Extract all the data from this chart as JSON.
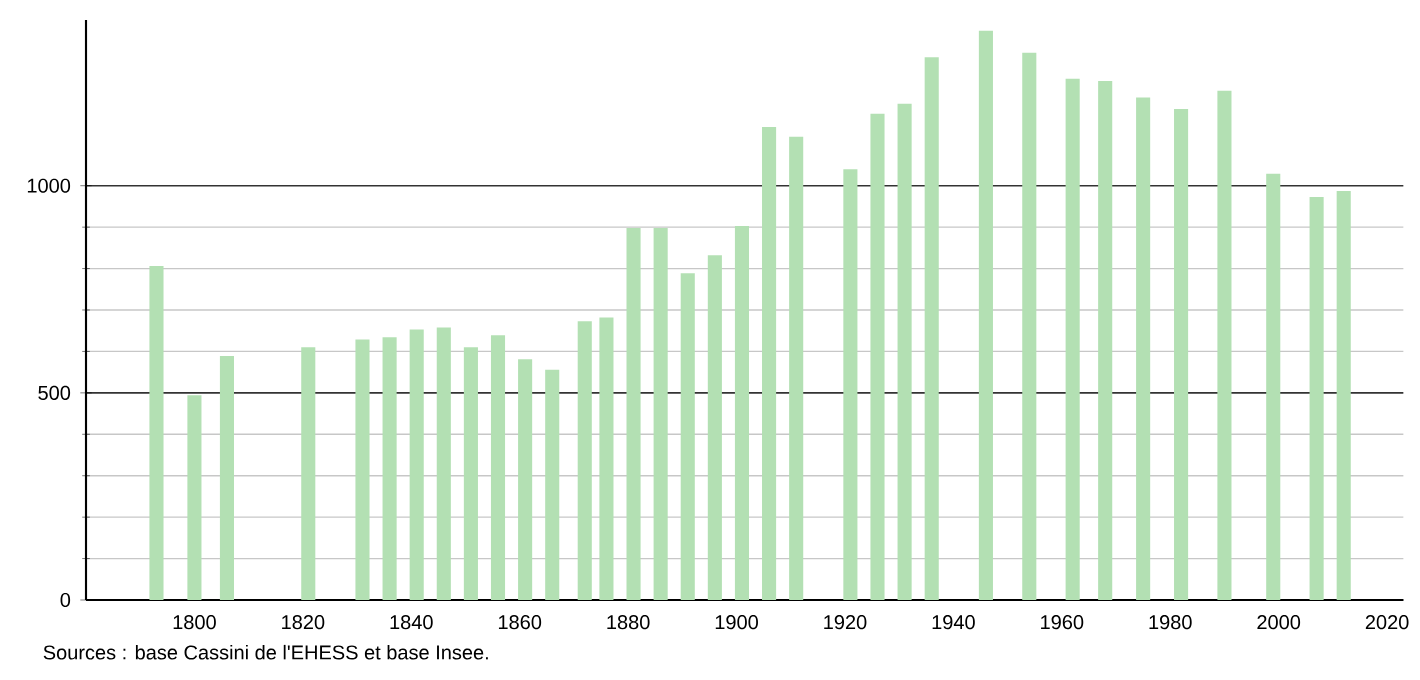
{
  "chart_data": {
    "type": "bar",
    "color": "#b3e0b3",
    "x": [
      1793,
      1800,
      1806,
      1821,
      1831,
      1836,
      1841,
      1846,
      1851,
      1856,
      1861,
      1866,
      1872,
      1876,
      1881,
      1886,
      1891,
      1896,
      1901,
      1906,
      1911,
      1921,
      1926,
      1931,
      1936,
      1946,
      1954,
      1962,
      1968,
      1975,
      1982,
      1990,
      1999,
      2007,
      2012
    ],
    "values": [
      806,
      494,
      589,
      610,
      629,
      634,
      653,
      658,
      610,
      639,
      581,
      556,
      673,
      682,
      898,
      898,
      789,
      832,
      903,
      1142,
      1118,
      1040,
      1174,
      1198,
      1310,
      1374,
      1321,
      1258,
      1253,
      1213,
      1185,
      1229,
      1029,
      973,
      987
    ],
    "xlim": [
      1780,
      2023
    ],
    "ylim": [
      0,
      1400
    ],
    "xticks": [
      1800,
      1820,
      1840,
      1860,
      1880,
      1900,
      1920,
      1940,
      1960,
      1980,
      2000,
      2020
    ],
    "yticks": [
      0,
      500,
      1000
    ],
    "grid": "y",
    "annotations": [
      "Sources : base Cassini de l'EHESS et base Insee."
    ]
  }
}
